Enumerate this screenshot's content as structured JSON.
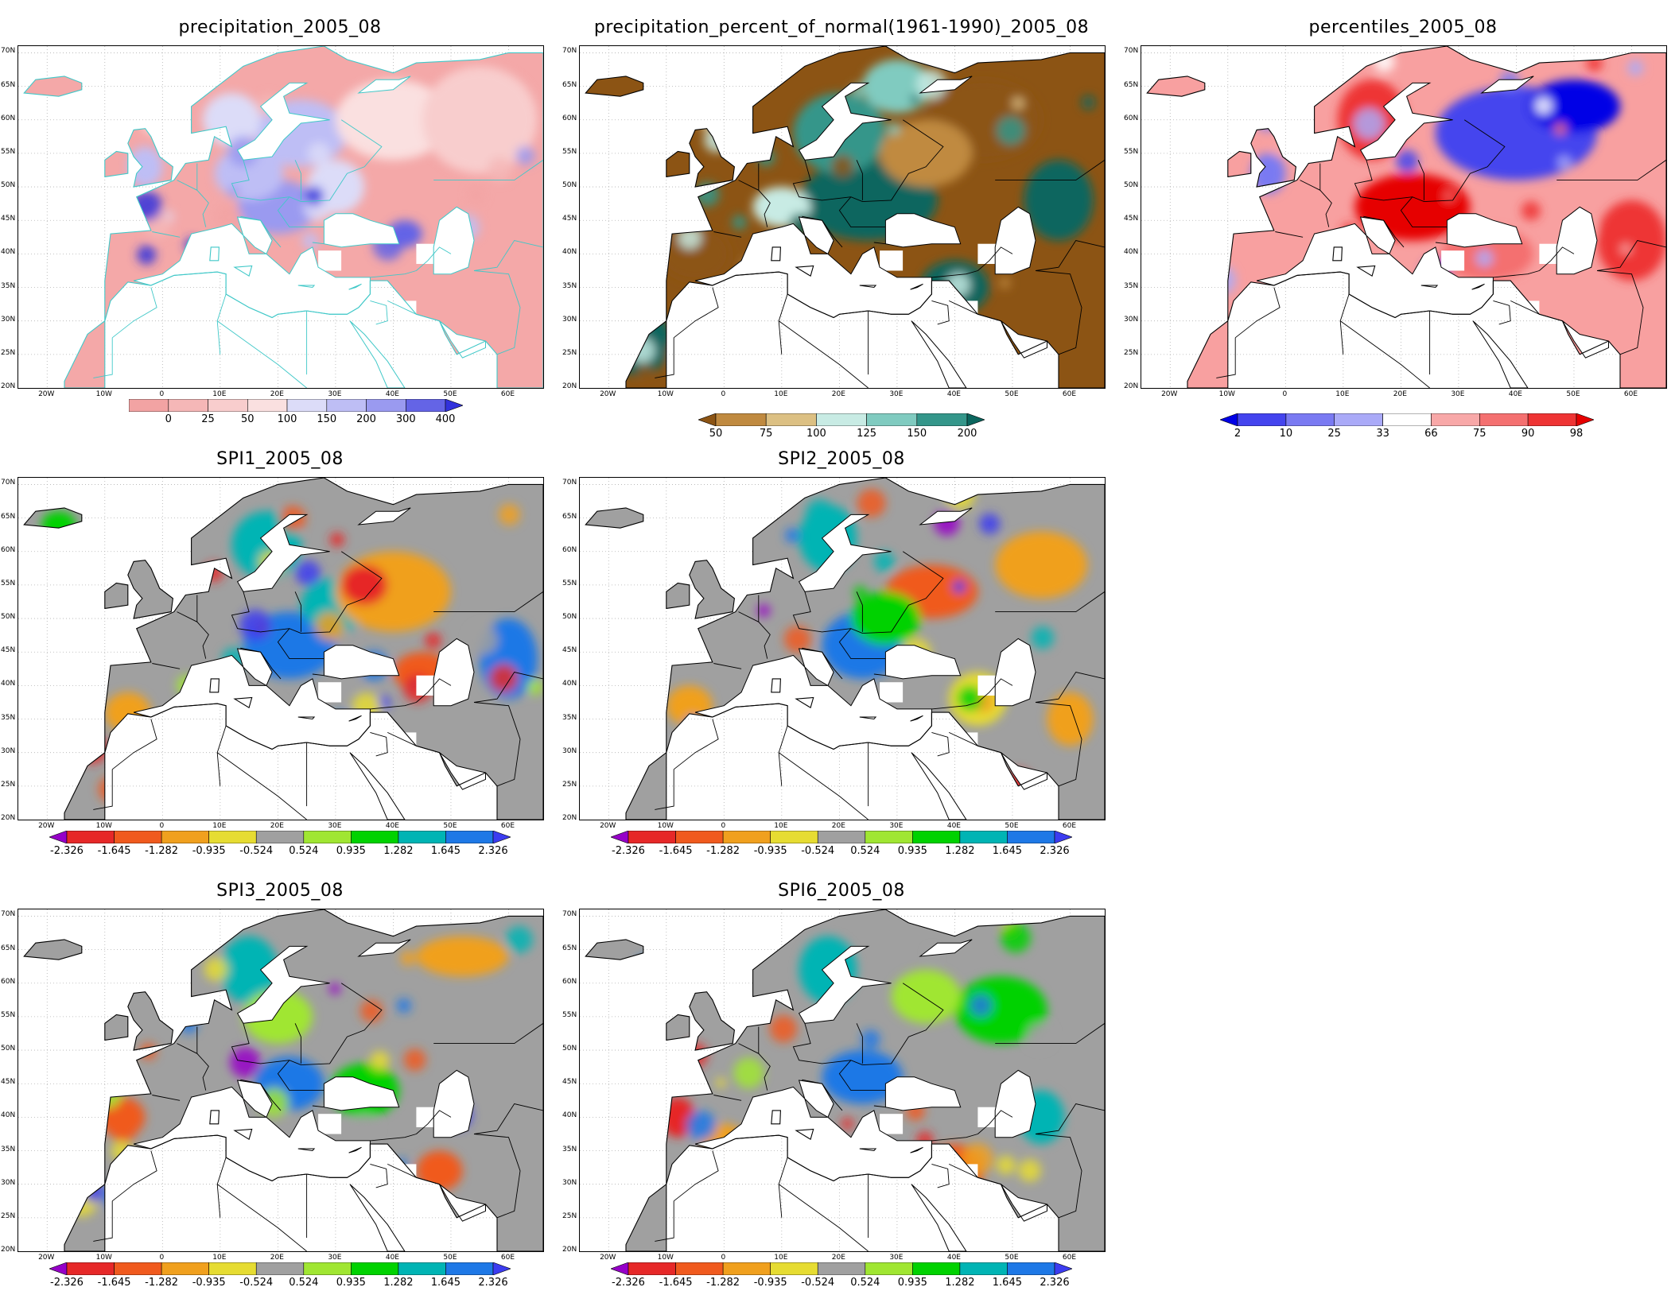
{
  "figure": {
    "panels": [
      {
        "id": "precipitation",
        "title": "precipitation_2005_08",
        "legend": {
          "labels": [
            "0",
            "25",
            "50",
            "100",
            "150",
            "200",
            "300",
            "400"
          ],
          "colors": [
            "#f2a3a3",
            "#f5b7b7",
            "#f8cdcd",
            "#fae0e0",
            "#dcdcf8",
            "#bebef5",
            "#9a9af0",
            "#6464e6",
            "#3232dc"
          ],
          "arrow_right": true,
          "arrow_left": false
        },
        "base_color": "#f4a8a8",
        "borders_color": "#40c8c8"
      },
      {
        "id": "percent_of_normal",
        "title": "precipitation_percent_of_normal(1961-1990)_2005_08",
        "legend": {
          "labels": [
            "50",
            "75",
            "100",
            "125",
            "150",
            "200"
          ],
          "colors": [
            "#8c5414",
            "#c08a40",
            "#dcc083",
            "#c8ebe4",
            "#80cbc0",
            "#34968a",
            "#0b665e"
          ],
          "arrow_right": true,
          "arrow_left": true
        },
        "base_color": "#8c5414",
        "borders_color": "#000000"
      },
      {
        "id": "percentiles",
        "title": "percentiles_2005_08",
        "legend": {
          "labels": [
            "2",
            "10",
            "25",
            "33",
            "66",
            "75",
            "90",
            "98"
          ],
          "colors": [
            "#0000e6",
            "#4444ee",
            "#7a7af2",
            "#aaaaf8",
            "#ffffff",
            "#f8a8a8",
            "#f47070",
            "#ee3434",
            "#e60000"
          ],
          "arrow_right": true,
          "arrow_left": true
        },
        "base_color": "#f8a0a0",
        "borders_color": "#000000"
      },
      {
        "id": "spi1",
        "title": "SPI1_2005_08",
        "legend_ref": "spi"
      },
      {
        "id": "spi2",
        "title": "SPI2_2005_08",
        "legend_ref": "spi"
      },
      {
        "id": "spi3",
        "title": "SPI3_2005_08",
        "legend_ref": "spi"
      },
      {
        "id": "spi6",
        "title": "SPI6_2005_08",
        "legend_ref": "spi"
      }
    ],
    "spi_legend": {
      "labels": [
        "-2.326",
        "-1.645",
        "-1.282",
        "-0.935",
        "-0.524",
        "0.524",
        "0.935",
        "1.282",
        "1.645",
        "2.326"
      ],
      "colors": [
        "#9600c8",
        "#e62828",
        "#f05a1e",
        "#f0a01e",
        "#e6dc32",
        "#a0a0a0",
        "#a0e632",
        "#00d200",
        "#00b4b4",
        "#1e78e6",
        "#3c3cf0"
      ],
      "arrow_right": true,
      "arrow_left": true
    },
    "axes": {
      "lat_ticks": [
        "70N",
        "65N",
        "60N",
        "55N",
        "50N",
        "45N",
        "40N",
        "35N",
        "30N",
        "25N",
        "20N"
      ],
      "lon_ticks": [
        "20W",
        "10W",
        "0",
        "10E",
        "20E",
        "30E",
        "40E",
        "50E",
        "60E"
      ]
    }
  }
}
